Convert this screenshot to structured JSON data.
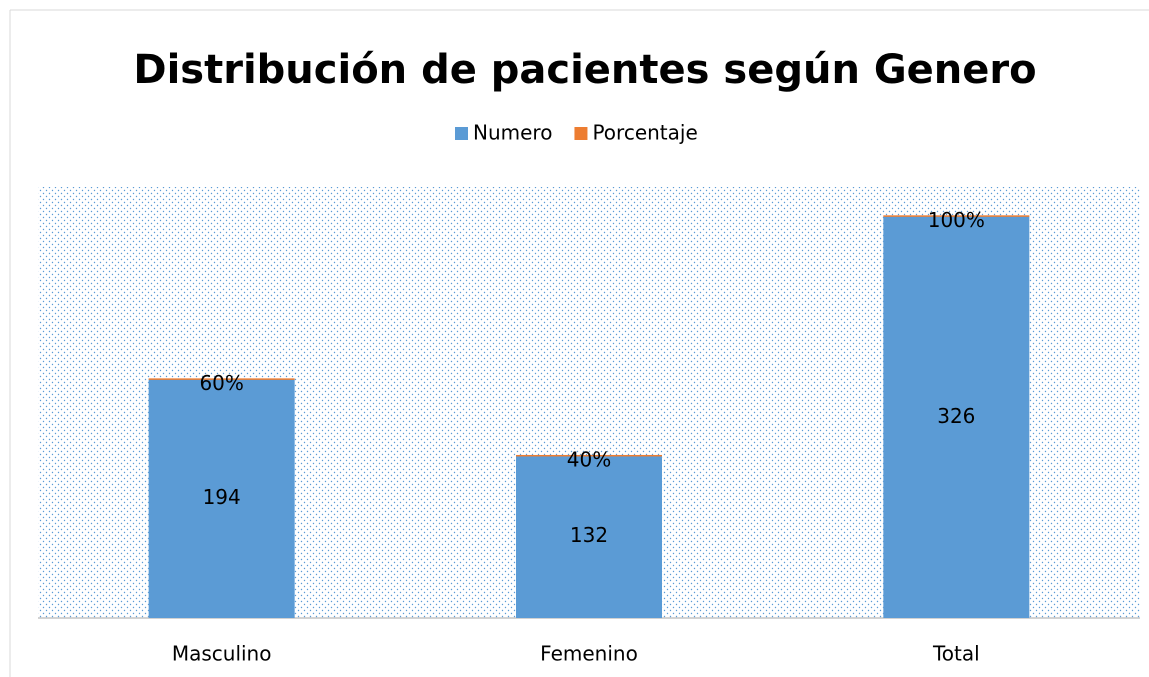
{
  "chart_data": {
    "type": "stacked-bar",
    "title": "Distribución de  pacientes según  Genero",
    "categories": [
      "Masculino",
      "Femenino",
      "Total"
    ],
    "series": [
      {
        "name": "Numero",
        "color": "#5b9bd5",
        "values": [
          194,
          132,
          326
        ]
      },
      {
        "name": "Porcentaje",
        "color": "#ed7d31",
        "values": [
          0.6,
          0.4,
          1
        ],
        "value_labels": [
          "60%",
          "40%",
          "100%"
        ]
      }
    ],
    "ylim": [
      0,
      350
    ],
    "legend": "top"
  }
}
